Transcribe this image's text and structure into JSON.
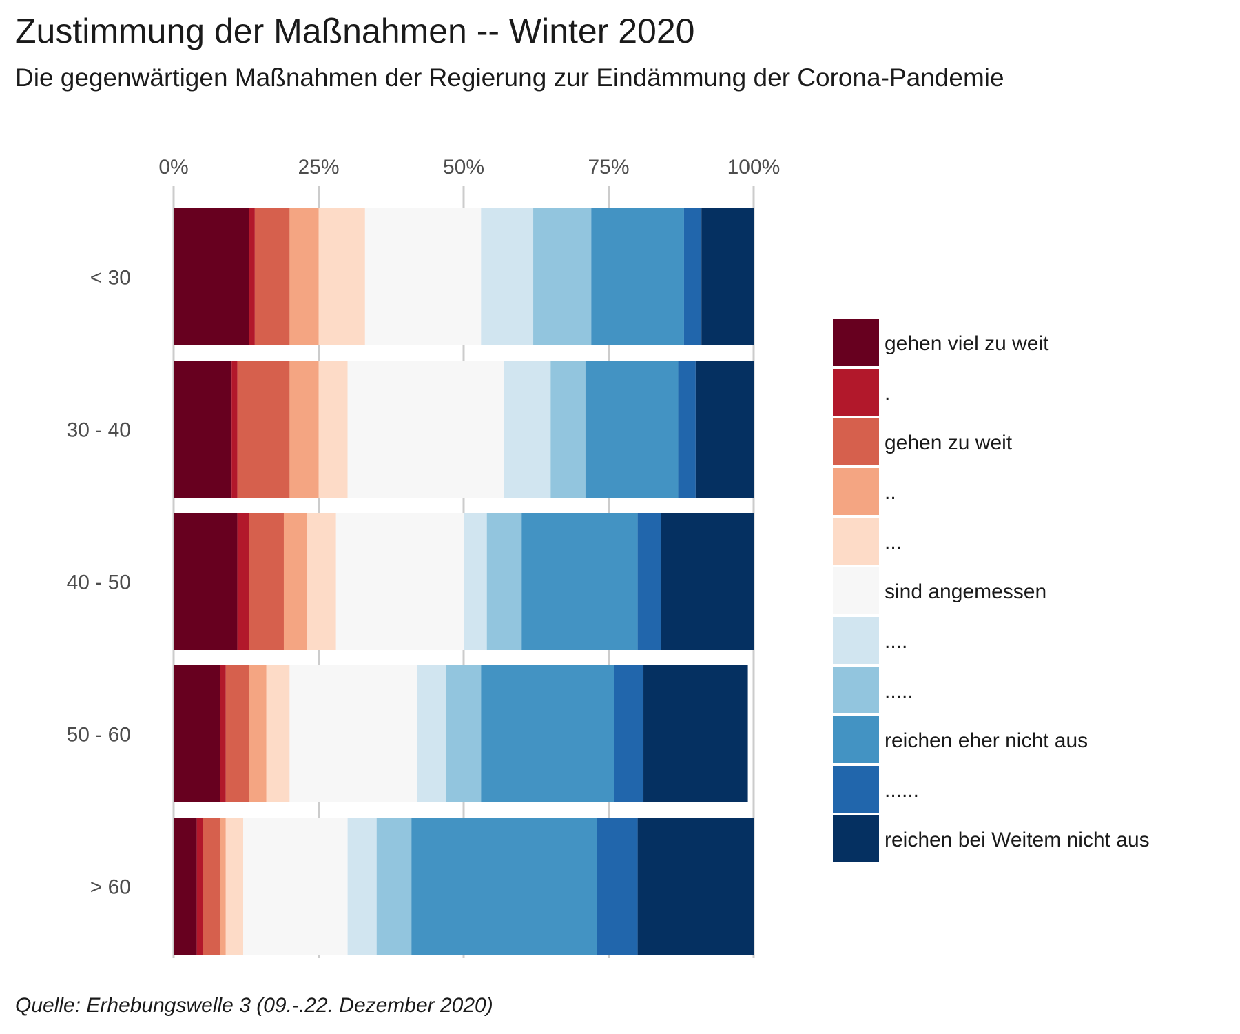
{
  "chart_data": {
    "type": "bar",
    "orientation": "horizontal",
    "stacked": true,
    "title": "Zustimmung der Maßnahmen -- Winter 2020",
    "subtitle": "Die gegenwärtigen Maßnahmen der Regierung zur Eindämmung der Corona-Pandemie",
    "caption": "Quelle: Erhebungswelle 3 (09.-.22. Dezember 2020)",
    "xlim": [
      0,
      100
    ],
    "x_ticks": [
      "0%",
      "25%",
      "50%",
      "75%",
      "100%"
    ],
    "x_axis_position": "top",
    "grid": "vertical",
    "categories": [
      "< 30",
      "30 - 40",
      "40 - 50",
      "50 - 60",
      "> 60"
    ],
    "legend_position": "right",
    "series": [
      {
        "name": "gehen viel zu weit",
        "color": "#67001f",
        "values": [
          13.0,
          10.0,
          11.0,
          8.0,
          4.0
        ]
      },
      {
        "name": ".",
        "color": "#b2182b",
        "values": [
          1.0,
          1.0,
          2.0,
          1.0,
          1.0
        ]
      },
      {
        "name": "gehen zu weit",
        "color": "#d6604d",
        "values": [
          6.0,
          9.0,
          6.0,
          4.0,
          3.0
        ]
      },
      {
        "name": "..",
        "color": "#f4a582",
        "values": [
          5.0,
          5.0,
          4.0,
          3.0,
          1.0
        ]
      },
      {
        "name": "...",
        "color": "#fddbc7",
        "values": [
          8.0,
          5.0,
          5.0,
          4.0,
          3.0
        ]
      },
      {
        "name": "sind angemessen",
        "color": "#f7f7f7",
        "values": [
          20.0,
          27.0,
          22.0,
          22.0,
          18.0
        ]
      },
      {
        "name": "....",
        "color": "#d1e5f0",
        "values": [
          9.0,
          8.0,
          4.0,
          5.0,
          5.0
        ]
      },
      {
        "name": ".....",
        "color": "#92c5de",
        "values": [
          10.0,
          6.0,
          6.0,
          6.0,
          6.0
        ]
      },
      {
        "name": "reichen eher nicht aus",
        "color": "#4393c3",
        "values": [
          16.0,
          16.0,
          20.0,
          23.0,
          32.0
        ]
      },
      {
        "name": "......",
        "color": "#2166ac",
        "values": [
          3.0,
          3.0,
          4.0,
          5.0,
          7.0
        ]
      },
      {
        "name": "reichen bei Weitem nicht aus",
        "color": "#053061",
        "values": [
          9.0,
          10.0,
          16.0,
          18.0,
          20.0
        ]
      }
    ]
  }
}
